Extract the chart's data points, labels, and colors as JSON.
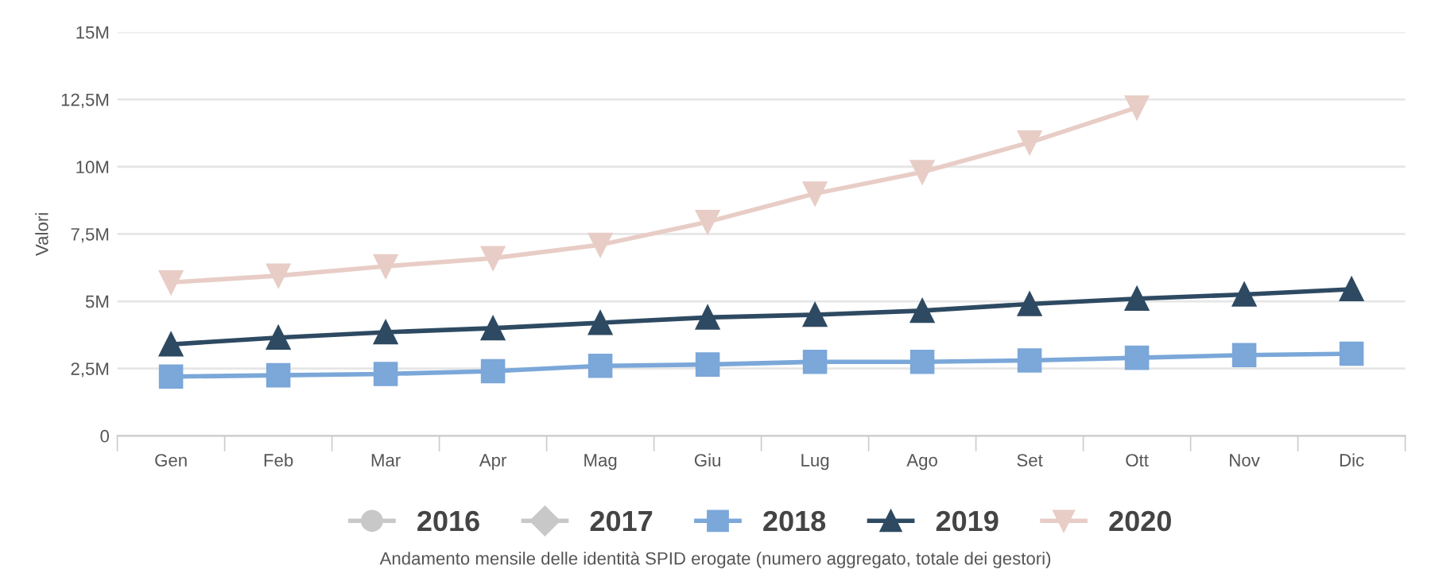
{
  "chart_data": {
    "type": "line",
    "ylabel": "Valori",
    "categories": [
      "Gen",
      "Feb",
      "Mar",
      "Apr",
      "Mag",
      "Giu",
      "Lug",
      "Ago",
      "Set",
      "Ott",
      "Nov",
      "Dic"
    ],
    "series": [
      {
        "name": "2016",
        "color": "#c8c8c8",
        "marker": "circle",
        "values": [
          null,
          null,
          null,
          null,
          null,
          null,
          null,
          null,
          null,
          null,
          null,
          null
        ]
      },
      {
        "name": "2017",
        "color": "#c8c8c8",
        "marker": "diamond",
        "values": [
          null,
          null,
          null,
          null,
          null,
          null,
          null,
          null,
          null,
          null,
          null,
          null
        ]
      },
      {
        "name": "2018",
        "color": "#7ba7d9",
        "marker": "square",
        "values": [
          2.2,
          2.25,
          2.3,
          2.4,
          2.6,
          2.65,
          2.75,
          2.75,
          2.8,
          2.9,
          3.0,
          3.05
        ]
      },
      {
        "name": "2019",
        "color": "#2e4a62",
        "marker": "triangle",
        "values": [
          3.4,
          3.65,
          3.85,
          4.0,
          4.2,
          4.4,
          4.5,
          4.65,
          4.9,
          5.1,
          5.25,
          5.45
        ]
      },
      {
        "name": "2020",
        "color": "#e8cdc6",
        "marker": "triangle_down",
        "values": [
          5.7,
          5.95,
          6.3,
          6.6,
          7.1,
          7.95,
          9.0,
          9.8,
          10.9,
          12.2,
          null,
          null
        ]
      }
    ],
    "ylim": [
      0,
      15
    ],
    "yticks": [
      {
        "value": 0,
        "label": "0"
      },
      {
        "value": 2.5,
        "label": "2,5M"
      },
      {
        "value": 5,
        "label": "5M"
      },
      {
        "value": 7.5,
        "label": "7,5M"
      },
      {
        "value": 10,
        "label": "10M"
      },
      {
        "value": 12.5,
        "label": "12,5M"
      },
      {
        "value": 15,
        "label": "15M"
      }
    ],
    "grid": "y",
    "legend": "bottom",
    "annotations": [
      "Andamento mensile delle identità SPID erogate (numero aggregato, totale dei gestori)"
    ]
  }
}
